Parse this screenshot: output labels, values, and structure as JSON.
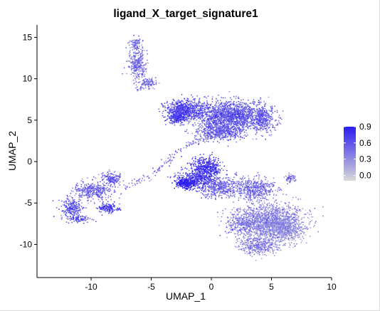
{
  "chart_data": {
    "type": "scatter",
    "title": "ligand_X_target_signature1",
    "xlabel": "UMAP_1",
    "ylabel": "UMAP_2",
    "xlim": [
      -14.5,
      10
    ],
    "ylim": [
      -14,
      16.5
    ],
    "x_ticks": [
      -10,
      -5,
      0,
      5,
      10
    ],
    "y_ticks": [
      15,
      10,
      5,
      0,
      -5,
      -10
    ],
    "x_tick_labels": [
      "-10",
      "-5",
      "0",
      "5",
      "10"
    ],
    "y_tick_labels": [
      "15",
      "10",
      "5",
      "0",
      "-5",
      "-10"
    ],
    "grid": false,
    "legend": {
      "position": "right",
      "type": "colorbar",
      "labels": [
        "0.9",
        "0.6",
        "0.3",
        "0.0"
      ],
      "values": [
        0.9,
        0.6,
        0.3,
        0.0
      ],
      "range": [
        -0.1,
        0.9
      ],
      "color_low": "#d9d9d9",
      "color_high": "#2b1cf0"
    },
    "clusters": [
      {
        "center": [
          -6.1,
          11.7
        ],
        "spread": [
          0.7,
          1.6
        ],
        "count": 300,
        "score": 0.4
      },
      {
        "center": [
          -6.3,
          14.2
        ],
        "spread": [
          0.5,
          0.6
        ],
        "count": 90,
        "score": 0.38
      },
      {
        "center": [
          -5.2,
          9.4
        ],
        "spread": [
          0.6,
          0.7
        ],
        "count": 80,
        "score": 0.36
      },
      {
        "center": [
          -2.2,
          6.3
        ],
        "spread": [
          1.4,
          1.1
        ],
        "count": 700,
        "score": 0.58
      },
      {
        "center": [
          1.6,
          5.6
        ],
        "spread": [
          2.6,
          1.5
        ],
        "count": 1600,
        "score": 0.5
      },
      {
        "center": [
          -2.9,
          5.3
        ],
        "spread": [
          0.6,
          0.6
        ],
        "count": 220,
        "score": 0.65
      },
      {
        "center": [
          0.8,
          3.6
        ],
        "spread": [
          1.9,
          0.9
        ],
        "count": 500,
        "score": 0.46
      },
      {
        "center": [
          4.3,
          5.1
        ],
        "spread": [
          0.9,
          1.4
        ],
        "count": 350,
        "score": 0.44
      },
      {
        "center": [
          -0.4,
          -0.8
        ],
        "spread": [
          1.1,
          1.2
        ],
        "count": 450,
        "score": 0.7
      },
      {
        "center": [
          -2.1,
          -2.6
        ],
        "spread": [
          0.8,
          0.6
        ],
        "count": 300,
        "score": 0.82
      },
      {
        "center": [
          0.6,
          -3.1
        ],
        "spread": [
          1.7,
          1.1
        ],
        "count": 450,
        "score": 0.45
      },
      {
        "center": [
          -1.2,
          -2.0
        ],
        "spread": [
          1.2,
          0.9
        ],
        "count": 300,
        "score": 0.6
      },
      {
        "center": [
          3.6,
          -3.3
        ],
        "spread": [
          1.5,
          1.2
        ],
        "count": 500,
        "score": 0.38
      },
      {
        "center": [
          4.9,
          -7.3
        ],
        "spread": [
          2.3,
          2.0
        ],
        "count": 1500,
        "score": 0.28
      },
      {
        "center": [
          6.3,
          -8.2
        ],
        "spread": [
          1.2,
          1.4
        ],
        "count": 500,
        "score": 0.16
      },
      {
        "center": [
          3.9,
          -10.2
        ],
        "spread": [
          1.5,
          1.0
        ],
        "count": 400,
        "score": 0.3
      },
      {
        "center": [
          2.5,
          -7.4
        ],
        "spread": [
          1.2,
          1.6
        ],
        "count": 300,
        "score": 0.36
      },
      {
        "center": [
          6.6,
          -2.0
        ],
        "spread": [
          0.4,
          0.4
        ],
        "count": 60,
        "score": 0.4
      },
      {
        "center": [
          -9.8,
          -3.5
        ],
        "spread": [
          1.4,
          1.0
        ],
        "count": 350,
        "score": 0.45
      },
      {
        "center": [
          -8.3,
          -2.1
        ],
        "spread": [
          0.7,
          0.8
        ],
        "count": 150,
        "score": 0.48
      },
      {
        "center": [
          -11.6,
          -5.6
        ],
        "spread": [
          0.8,
          1.0
        ],
        "count": 250,
        "score": 0.5
      },
      {
        "center": [
          -8.6,
          -5.6
        ],
        "spread": [
          0.8,
          0.5
        ],
        "count": 150,
        "score": 0.65
      },
      {
        "center": [
          -11.0,
          -6.9
        ],
        "spread": [
          0.8,
          0.4
        ],
        "count": 100,
        "score": 0.55
      }
    ],
    "trails": [
      {
        "from": [
          -6.2,
          8.6
        ],
        "to": [
          -5.0,
          10.0
        ],
        "count": 40,
        "score": 0.4
      },
      {
        "from": [
          -5.3,
          -2.0
        ],
        "to": [
          -2.2,
          1.8
        ],
        "count": 60,
        "score": 0.42
      },
      {
        "from": [
          -2.2,
          1.8
        ],
        "to": [
          0.6,
          3.3
        ],
        "count": 60,
        "score": 0.45
      },
      {
        "from": [
          -7.2,
          -3.2
        ],
        "to": [
          -5.4,
          -1.8
        ],
        "count": 30,
        "score": 0.4
      },
      {
        "from": [
          -3.5,
          -1.7
        ],
        "to": [
          -2.2,
          -2.0
        ],
        "count": 20,
        "score": 0.5
      }
    ]
  }
}
